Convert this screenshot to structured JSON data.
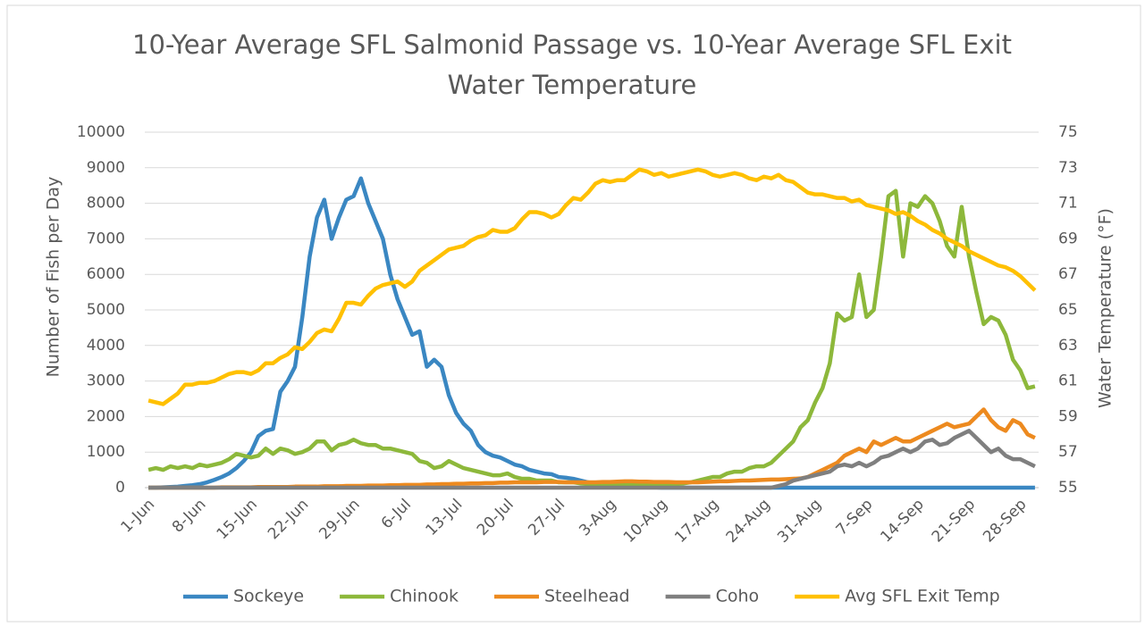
{
  "chart_data": {
    "type": "line",
    "title": "10-Year Average SFL Salmonid Passage vs. 10-Year Average SFL Exit Water Temperature",
    "y_label": "Number of Fish per Day",
    "y2_label": "Water Temperature (°F)",
    "categories": [
      "1-Jun",
      null,
      null,
      null,
      null,
      null,
      null,
      "8-Jun",
      null,
      null,
      null,
      null,
      null,
      null,
      "15-Jun",
      null,
      null,
      null,
      null,
      null,
      null,
      "22-Jun",
      null,
      null,
      null,
      null,
      null,
      null,
      "29-Jun",
      null,
      null,
      null,
      null,
      null,
      null,
      "6-Jul",
      null,
      null,
      null,
      null,
      null,
      null,
      "13-Jul",
      null,
      null,
      null,
      null,
      null,
      null,
      "20-Jul",
      null,
      null,
      null,
      null,
      null,
      null,
      "27-Jul",
      null,
      null,
      null,
      null,
      null,
      null,
      "3-Aug",
      null,
      null,
      null,
      null,
      null,
      null,
      "10-Aug",
      null,
      null,
      null,
      null,
      null,
      null,
      "17-Aug",
      null,
      null,
      null,
      null,
      null,
      null,
      "24-Aug",
      null,
      null,
      null,
      null,
      null,
      null,
      "31-Aug",
      null,
      null,
      null,
      null,
      null,
      null,
      "7-Sep",
      null,
      null,
      null,
      null,
      null,
      null,
      "14-Sep",
      null,
      null,
      null,
      null,
      null,
      null,
      "21-Sep",
      null,
      null,
      null,
      null,
      null,
      null,
      "28-Sep",
      null,
      null
    ],
    "ylim": [
      0,
      10000
    ],
    "yticks": [
      0,
      1000,
      2000,
      3000,
      4000,
      5000,
      6000,
      7000,
      8000,
      9000,
      10000
    ],
    "y2lim": [
      55,
      75
    ],
    "y2ticks": [
      55,
      57,
      59,
      61,
      63,
      65,
      67,
      69,
      71,
      73,
      75
    ],
    "grid": true,
    "legend": "bottom",
    "series": [
      {
        "name": "Sockeye",
        "color": "#3a87c2",
        "values": [
          0,
          0,
          10,
          20,
          30,
          50,
          70,
          100,
          150,
          220,
          300,
          400,
          550,
          750,
          1000,
          1450,
          1600,
          1650,
          2700,
          3000,
          3400,
          4800,
          6500,
          7600,
          8100,
          7000,
          7600,
          8100,
          8200,
          8700,
          8000,
          7500,
          7000,
          6000,
          5300,
          4800,
          4300,
          4400,
          3400,
          3600,
          3400,
          2600,
          2100,
          1800,
          1600,
          1200,
          1000,
          900,
          850,
          750,
          650,
          600,
          500,
          450,
          400,
          380,
          300,
          280,
          250,
          200,
          150,
          120,
          100,
          80,
          60,
          40,
          30,
          20,
          20,
          10,
          0,
          0,
          0,
          0,
          0,
          0,
          0,
          0,
          0,
          0,
          0,
          0,
          0,
          0,
          0,
          0,
          0,
          0,
          0,
          0,
          0,
          0,
          0,
          0,
          0,
          0,
          0,
          0,
          0,
          0,
          0,
          0,
          0,
          0,
          0,
          0,
          0,
          0,
          0,
          0,
          0,
          0,
          0,
          0,
          0,
          0,
          0,
          0,
          0,
          0,
          0,
          0
        ]
      },
      {
        "name": "Chinook",
        "color": "#8db83b",
        "values": [
          500,
          550,
          500,
          600,
          550,
          600,
          550,
          650,
          600,
          650,
          700,
          800,
          950,
          900,
          850,
          900,
          1100,
          950,
          1100,
          1050,
          950,
          1000,
          1100,
          1300,
          1300,
          1050,
          1200,
          1250,
          1350,
          1250,
          1200,
          1200,
          1100,
          1100,
          1050,
          1000,
          950,
          750,
          700,
          550,
          600,
          750,
          650,
          550,
          500,
          450,
          400,
          350,
          350,
          400,
          300,
          250,
          250,
          200,
          200,
          200,
          150,
          150,
          150,
          120,
          100,
          100,
          100,
          100,
          80,
          80,
          80,
          100,
          80,
          100,
          100,
          100,
          100,
          120,
          150,
          200,
          250,
          300,
          300,
          400,
          450,
          450,
          550,
          600,
          600,
          700,
          900,
          1100,
          1300,
          1700,
          1900,
          2400,
          2800,
          3500,
          4900,
          4700,
          4800,
          6000,
          4800,
          5000,
          6500,
          8200,
          8350,
          6500,
          8000,
          7900,
          8200,
          8000,
          7500,
          6800,
          6500,
          7900,
          6500,
          5500,
          4600,
          4800,
          4700,
          4300,
          3600,
          3300,
          2800,
          2850
        ]
      },
      {
        "name": "Steelhead",
        "color": "#ed8a1f",
        "values": [
          0,
          0,
          0,
          0,
          0,
          0,
          0,
          0,
          0,
          0,
          10,
          10,
          10,
          10,
          10,
          20,
          20,
          20,
          20,
          20,
          30,
          30,
          30,
          30,
          40,
          40,
          40,
          50,
          50,
          50,
          60,
          60,
          60,
          70,
          70,
          80,
          80,
          80,
          90,
          90,
          100,
          100,
          110,
          110,
          120,
          120,
          130,
          130,
          140,
          140,
          150,
          150,
          150,
          150,
          160,
          160,
          160,
          150,
          150,
          150,
          150,
          150,
          160,
          160,
          170,
          180,
          180,
          170,
          170,
          160,
          160,
          160,
          150,
          150,
          150,
          150,
          160,
          170,
          180,
          180,
          190,
          200,
          200,
          210,
          220,
          230,
          230,
          240,
          250,
          260,
          300,
          400,
          500,
          600,
          700,
          900,
          1000,
          1100,
          1000,
          1300,
          1200,
          1300,
          1400,
          1300,
          1300,
          1400,
          1500,
          1600,
          1700,
          1800,
          1700,
          1750,
          1800,
          2000,
          2200,
          1900,
          1700,
          1600,
          1900,
          1800,
          1500,
          1400
        ]
      },
      {
        "name": "Coho",
        "color": "#7f7f7f",
        "values": [
          0,
          0,
          0,
          0,
          0,
          0,
          0,
          0,
          0,
          0,
          0,
          0,
          0,
          0,
          0,
          0,
          0,
          0,
          0,
          0,
          0,
          0,
          0,
          0,
          0,
          0,
          0,
          0,
          0,
          0,
          0,
          0,
          0,
          0,
          0,
          0,
          0,
          0,
          0,
          0,
          0,
          0,
          0,
          0,
          0,
          0,
          0,
          0,
          0,
          0,
          0,
          0,
          0,
          0,
          0,
          0,
          0,
          0,
          0,
          0,
          0,
          0,
          0,
          0,
          0,
          0,
          0,
          0,
          0,
          0,
          0,
          0,
          0,
          0,
          0,
          0,
          0,
          0,
          0,
          0,
          0,
          0,
          0,
          0,
          0,
          0,
          50,
          100,
          200,
          250,
          300,
          350,
          400,
          450,
          600,
          650,
          600,
          700,
          600,
          700,
          850,
          900,
          1000,
          1100,
          1000,
          1100,
          1300,
          1350,
          1200,
          1250,
          1400,
          1500,
          1600,
          1400,
          1200,
          1000,
          1100,
          900,
          800,
          800,
          700,
          600
        ]
      },
      {
        "name": "Avg SFL Exit Temp",
        "color": "#ffc000",
        "axis": "y2",
        "values": [
          59.9,
          59.8,
          59.7,
          60.0,
          60.3,
          60.8,
          60.8,
          60.9,
          60.9,
          61.0,
          61.2,
          61.4,
          61.5,
          61.5,
          61.4,
          61.6,
          62.0,
          62.0,
          62.3,
          62.5,
          62.9,
          62.8,
          63.2,
          63.7,
          63.9,
          63.8,
          64.5,
          65.4,
          65.4,
          65.3,
          65.8,
          66.2,
          66.4,
          66.5,
          66.6,
          66.3,
          66.6,
          67.2,
          67.5,
          67.8,
          68.1,
          68.4,
          68.5,
          68.6,
          68.9,
          69.1,
          69.2,
          69.5,
          69.4,
          69.4,
          69.6,
          70.1,
          70.5,
          70.5,
          70.4,
          70.2,
          70.4,
          70.9,
          71.3,
          71.2,
          71.6,
          72.1,
          72.3,
          72.2,
          72.3,
          72.3,
          72.6,
          72.9,
          72.8,
          72.6,
          72.7,
          72.5,
          72.6,
          72.7,
          72.8,
          72.9,
          72.8,
          72.6,
          72.5,
          72.6,
          72.7,
          72.6,
          72.4,
          72.3,
          72.5,
          72.4,
          72.6,
          72.3,
          72.2,
          71.9,
          71.6,
          71.5,
          71.5,
          71.4,
          71.3,
          71.3,
          71.1,
          71.2,
          70.9,
          70.8,
          70.7,
          70.6,
          70.4,
          70.5,
          70.3,
          70.0,
          69.8,
          69.5,
          69.3,
          69.0,
          68.8,
          68.6,
          68.3,
          68.1,
          67.9,
          67.7,
          67.5,
          67.4,
          67.2,
          66.9,
          66.5,
          66.1
        ]
      }
    ]
  }
}
